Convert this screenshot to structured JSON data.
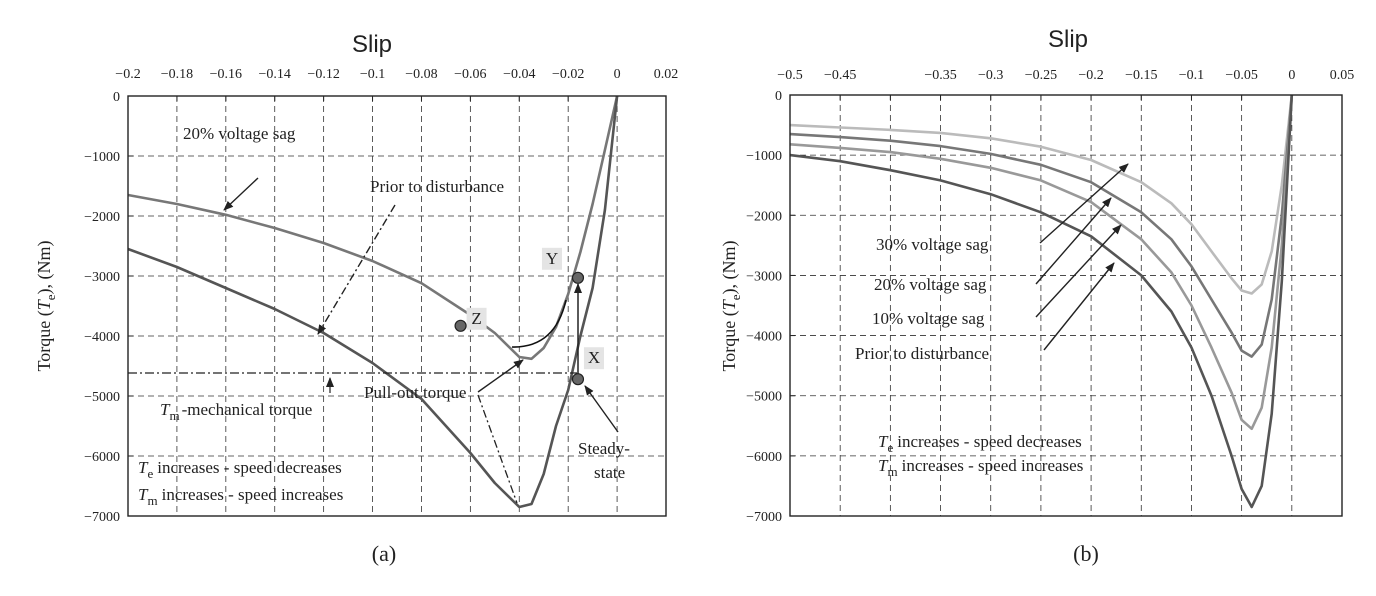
{
  "chart_data": [
    {
      "panel": "(a)",
      "type": "line",
      "title": "Slip",
      "xlabel": "",
      "ylabel_main": "Torque (",
      "ylabel_var": "T",
      "ylabel_sub": "e",
      "ylabel_end": "), (Nm)",
      "xlim": [
        -0.2,
        0.02
      ],
      "ylim": [
        -7000,
        0
      ],
      "x_axis_position": "top",
      "grid": true,
      "xticks": [
        -0.2,
        -0.18,
        -0.16,
        -0.14,
        -0.12,
        -0.1,
        -0.08,
        -0.06,
        -0.04,
        -0.02,
        0,
        0.02
      ],
      "xtick_labels": [
        "−0.2",
        "−0.18",
        "−0.16",
        "−0.14",
        "−0.12",
        "−0.1",
        "−0.08",
        "−0.06",
        "−0.04",
        "−0.02",
        "0",
        "0.02"
      ],
      "yticks": [
        0,
        -1000,
        -2000,
        -3000,
        -4000,
        -5000,
        -6000,
        -7000
      ],
      "ytick_labels": [
        "0",
        "−1000",
        "−2000",
        "−3000",
        "−4000",
        "−5000",
        "−6000",
        "−7000"
      ],
      "series": [
        {
          "color": "#777777",
          "x": [
            -0.2,
            -0.18,
            -0.16,
            -0.14,
            -0.12,
            -0.1,
            -0.08,
            -0.06,
            -0.05,
            -0.04,
            -0.035,
            -0.03,
            -0.025,
            -0.02,
            -0.015,
            -0.01,
            -0.005,
            0
          ],
          "y": [
            -1650,
            -1800,
            -1980,
            -2200,
            -2450,
            -2750,
            -3120,
            -3650,
            -3950,
            -4350,
            -4380,
            -4200,
            -3850,
            -3300,
            -2600,
            -1800,
            -900,
            0
          ]
        },
        {
          "color": "#555555",
          "x": [
            -0.2,
            -0.18,
            -0.16,
            -0.14,
            -0.12,
            -0.1,
            -0.08,
            -0.06,
            -0.05,
            -0.04,
            -0.035,
            -0.03,
            -0.025,
            -0.02,
            -0.015,
            -0.01,
            -0.005,
            0
          ],
          "y": [
            -2550,
            -2850,
            -3200,
            -3550,
            -3950,
            -4450,
            -5050,
            -5950,
            -6450,
            -6850,
            -6800,
            -6300,
            -5500,
            -4900,
            -4000,
            -3200,
            -1900,
            0
          ]
        }
      ],
      "tm_line": {
        "y": -4620,
        "x_from": -0.2,
        "x_to": -0.016
      },
      "points": [
        {
          "label": "Z",
          "x": -0.064,
          "y": -3830
        },
        {
          "label": "Y",
          "x": -0.016,
          "y": -3030
        },
        {
          "label": "X",
          "x": -0.016,
          "y": -4720
        }
      ],
      "annotations": {
        "sag20": "20% voltage sag",
        "prior": "Prior to disturbance",
        "pullout": "Pull-out torque",
        "tm_var": "T",
        "tm_sub": "m",
        "tm_text": "-mechanical torque",
        "steady1": "Steady-",
        "steady2": "state",
        "l1_var": "T",
        "l1_sub": "e",
        "l1_text": "increases - speed decreases",
        "l2_var": "T",
        "l2_sub": "m",
        "l2_text": "increases - speed increases"
      }
    },
    {
      "panel": "(b)",
      "type": "line",
      "title": "Slip",
      "xlabel": "",
      "ylabel_main": "Torque (",
      "ylabel_var": "T",
      "ylabel_sub": "e",
      "ylabel_end": "), (Nm)",
      "xlim": [
        -0.5,
        0.05
      ],
      "ylim": [
        -7000,
        0
      ],
      "x_axis_position": "top",
      "grid": true,
      "xticks": [
        -0.5,
        -0.45,
        -0.4,
        -0.35,
        -0.3,
        -0.25,
        -0.2,
        -0.15,
        -0.1,
        -0.05,
        0,
        0.05
      ],
      "xtick_labels": [
        "−0.5",
        "−0.45",
        "−0.35",
        "−0.3",
        "−0.25",
        "−0.2",
        "−0.15",
        "−0.1",
        "−0.05",
        "0",
        "0.05"
      ],
      "xtick_label_values": [
        -0.5,
        -0.45,
        -0.35,
        -0.3,
        -0.25,
        -0.2,
        -0.15,
        -0.1,
        -0.05,
        0,
        0.05
      ],
      "yticks": [
        0,
        -1000,
        -2000,
        -3000,
        -4000,
        -5000,
        -6000,
        -7000
      ],
      "ytick_labels": [
        "0",
        "−1000",
        "−2000",
        "−3000",
        "−4000",
        "−5000",
        "−6000",
        "−7000"
      ],
      "series": [
        {
          "name": "30% voltage sag",
          "color": "#bbbbbb",
          "x": [
            -0.5,
            -0.45,
            -0.4,
            -0.35,
            -0.3,
            -0.25,
            -0.2,
            -0.15,
            -0.12,
            -0.1,
            -0.08,
            -0.06,
            -0.05,
            -0.04,
            -0.03,
            -0.02,
            -0.01,
            0
          ],
          "y": [
            -500,
            -540,
            -580,
            -630,
            -720,
            -860,
            -1080,
            -1450,
            -1800,
            -2150,
            -2600,
            -3050,
            -3250,
            -3300,
            -3150,
            -2600,
            -1500,
            0
          ]
        },
        {
          "name": "20% voltage sag",
          "color": "#777777",
          "x": [
            -0.5,
            -0.45,
            -0.4,
            -0.35,
            -0.3,
            -0.25,
            -0.2,
            -0.15,
            -0.12,
            -0.1,
            -0.08,
            -0.06,
            -0.05,
            -0.04,
            -0.03,
            -0.02,
            -0.01,
            0
          ],
          "y": [
            -650,
            -700,
            -760,
            -850,
            -980,
            -1160,
            -1450,
            -1950,
            -2400,
            -2850,
            -3400,
            -3950,
            -4250,
            -4350,
            -4150,
            -3400,
            -2000,
            0
          ]
        },
        {
          "name": "10% voltage sag",
          "color": "#999999",
          "x": [
            -0.5,
            -0.45,
            -0.4,
            -0.35,
            -0.3,
            -0.25,
            -0.2,
            -0.15,
            -0.12,
            -0.1,
            -0.08,
            -0.06,
            -0.05,
            -0.04,
            -0.03,
            -0.02,
            -0.01,
            0
          ],
          "y": [
            -820,
            -880,
            -950,
            -1060,
            -1210,
            -1420,
            -1780,
            -2400,
            -2950,
            -3500,
            -4200,
            -4950,
            -5400,
            -5550,
            -5200,
            -4200,
            -2500,
            0
          ]
        },
        {
          "name": "Prior to disturbance",
          "color": "#555555",
          "x": [
            -0.5,
            -0.45,
            -0.4,
            -0.35,
            -0.3,
            -0.25,
            -0.2,
            -0.15,
            -0.12,
            -0.1,
            -0.08,
            -0.06,
            -0.05,
            -0.04,
            -0.03,
            -0.02,
            -0.01,
            0
          ],
          "y": [
            -1000,
            -1100,
            -1250,
            -1420,
            -1650,
            -1950,
            -2350,
            -3000,
            -3600,
            -4200,
            -5000,
            -6000,
            -6550,
            -6850,
            -6500,
            -5300,
            -3100,
            0
          ]
        }
      ],
      "annotations": {
        "sag30": "30% voltage sag",
        "sag20": "20% voltage sag",
        "sag10": "10% voltage sag",
        "prior": "Prior to disturbance",
        "l1_var": "T",
        "l1_sub": "e",
        "l1_text": "increases - speed decreases",
        "l2_var": "T",
        "l2_sub": "m",
        "l2_text": "increases - speed increases"
      }
    }
  ]
}
